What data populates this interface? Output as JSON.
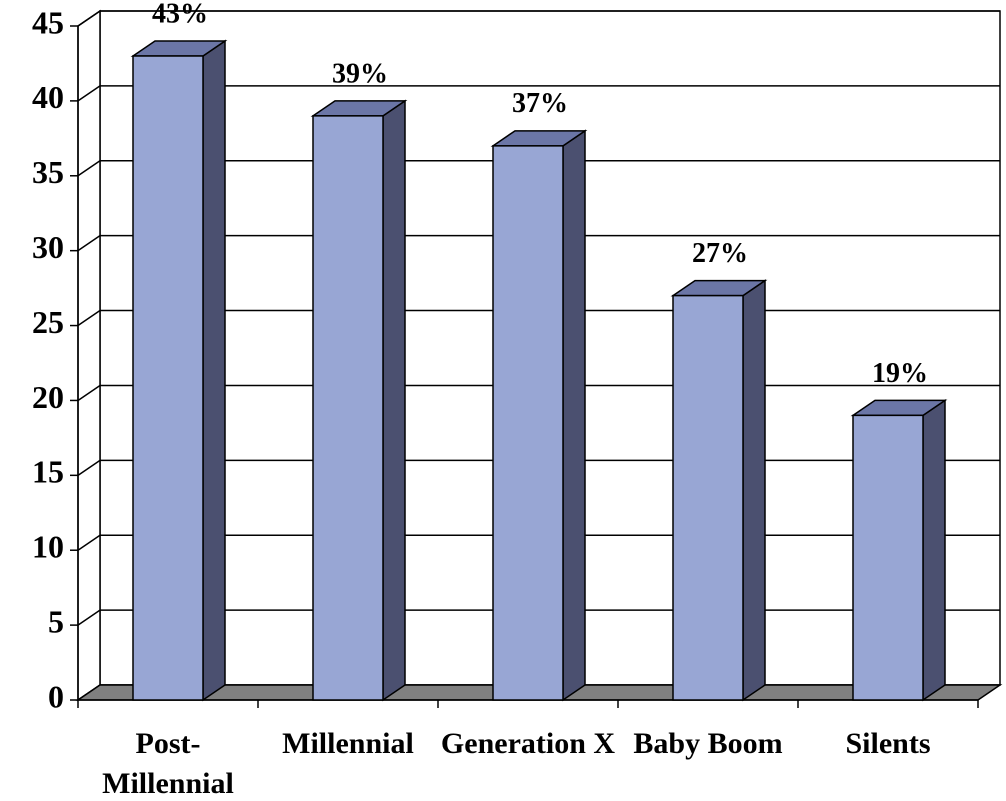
{
  "chart_data": {
    "type": "bar3d",
    "categories": [
      "Post-Millennial",
      "Millennial",
      "Generation X",
      "Baby Boom",
      "Silents"
    ],
    "values": [
      43,
      39,
      37,
      27,
      19
    ],
    "value_labels": [
      "43%",
      "39%",
      "37%",
      "27%",
      "19%"
    ],
    "color": "#98a6d4",
    "ylim": [
      0,
      45
    ],
    "yticks": [
      0,
      5,
      10,
      15,
      20,
      25,
      30,
      35,
      40,
      45
    ],
    "grid": true
  }
}
